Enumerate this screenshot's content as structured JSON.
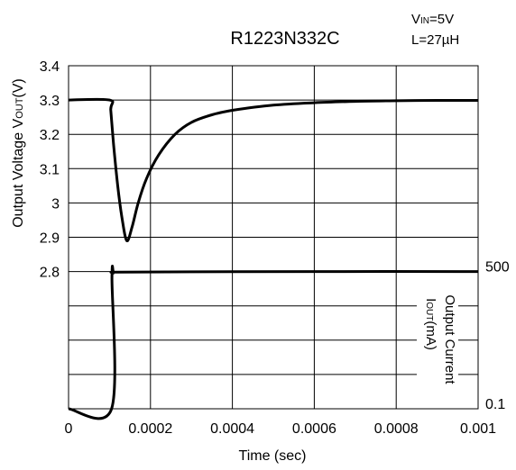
{
  "chart_data": {
    "type": "line",
    "title": "R1223N332C",
    "conditions": {
      "vin": {
        "main": "V",
        "sub": "IN",
        "rest": "=5V"
      },
      "inductance": "L=27µH"
    },
    "xlabel": "Time (sec)",
    "ylabel": {
      "pre": "Output Voltage V",
      "sub": "OUT",
      "post": "(V)"
    },
    "y2label": {
      "line1": "Output Current",
      "pre": "I",
      "sub": "OUT",
      "post": "(mA)"
    },
    "xlim": [
      0,
      0.001
    ],
    "ylim": [
      2.7,
      3.4
    ],
    "grid": true,
    "x_ticks": [
      {
        "value": 0,
        "label": "0"
      },
      {
        "value": 0.0002,
        "label": "0.0002"
      },
      {
        "value": 0.0004,
        "label": "0.0004"
      },
      {
        "value": 0.0006,
        "label": "0.0006"
      },
      {
        "value": 0.0008,
        "label": "0.0008"
      },
      {
        "value": 0.001,
        "label": "0.001"
      }
    ],
    "y_ticks": [
      {
        "value": 3.4,
        "label": "3.4"
      },
      {
        "value": 3.3,
        "label": "3.3"
      },
      {
        "value": 3.2,
        "label": "3.2"
      },
      {
        "value": 3.1,
        "label": "3.1"
      },
      {
        "value": 3.0,
        "label": "3"
      },
      {
        "value": 2.9,
        "label": "2.9"
      },
      {
        "value": 2.8,
        "label": "2.8"
      }
    ],
    "y2_ticks": [
      {
        "value": 500,
        "label": "500"
      },
      {
        "value": 0.1,
        "label": "0.1"
      }
    ],
    "y2_levels_on_primary_axis": {
      "500": 2.8,
      "0.1": 2.4
    },
    "series": [
      {
        "axis": "voltage",
        "x": [
          0,
          0.0001,
          0.000103,
          0.00011,
          0.00012,
          0.00013,
          0.000142,
          0.000155,
          0.00017,
          0.00019,
          0.00022,
          0.00026,
          0.0003,
          0.00035,
          0.0004,
          0.0005,
          0.0006,
          0.0007,
          0.0008,
          0.0009,
          0.001
        ],
        "y": [
          3.3,
          3.3,
          3.27,
          3.17,
          3.05,
          2.96,
          2.89,
          2.93,
          3.0,
          3.07,
          3.14,
          3.2,
          3.235,
          3.257,
          3.27,
          3.285,
          3.292,
          3.296,
          3.298,
          3.299,
          3.299
        ]
      },
      {
        "axis": "current",
        "x": [
          0,
          0.000105,
          0.000106,
          0.00011,
          0.00012,
          0.0003,
          0.0006,
          0.001
        ],
        "y": [
          0.1,
          0.1,
          480,
          495,
          498,
          499,
          500,
          500
        ]
      }
    ]
  }
}
